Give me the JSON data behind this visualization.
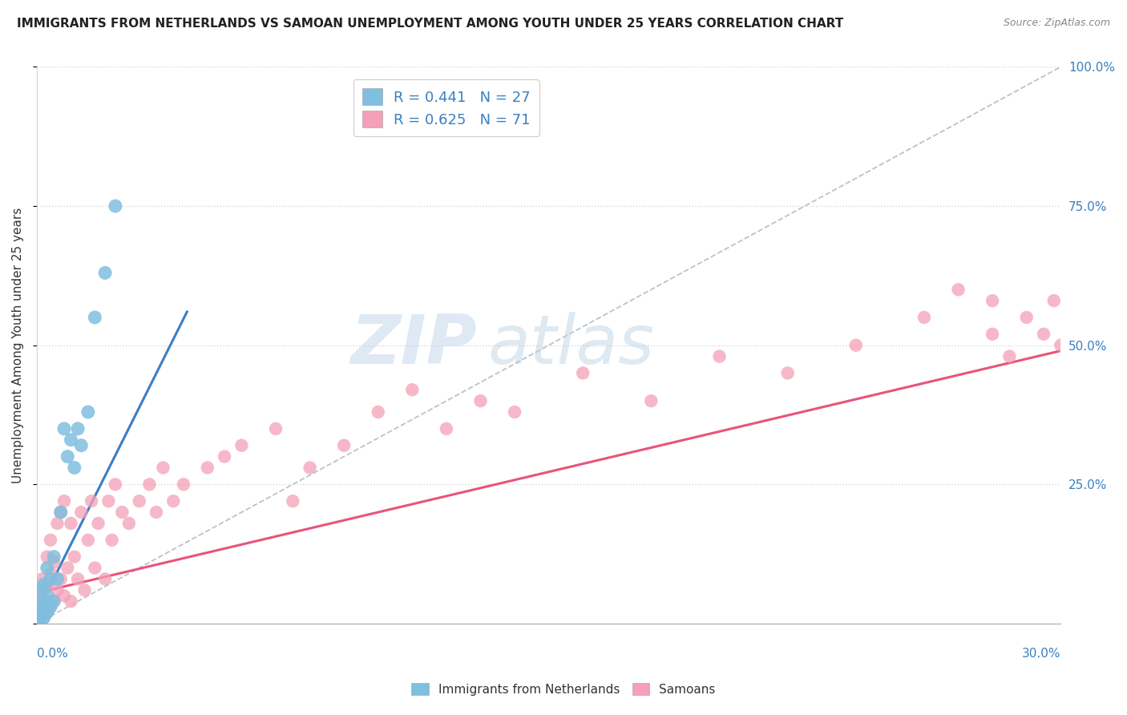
{
  "title": "IMMIGRANTS FROM NETHERLANDS VS SAMOAN UNEMPLOYMENT AMONG YOUTH UNDER 25 YEARS CORRELATION CHART",
  "source": "Source: ZipAtlas.com",
  "ylabel": "Unemployment Among Youth under 25 years",
  "legend1_label": "R = 0.441   N = 27",
  "legend2_label": "R = 0.625   N = 71",
  "blue_color": "#7fbfdf",
  "pink_color": "#f4a0b8",
  "line_blue_color": "#3a7fc1",
  "line_pink_color": "#e8547a",
  "ref_line_color": "#b0b8c0",
  "watermark_zip": "ZIP",
  "watermark_atlas": "atlas",
  "blue_scatter_x": [
    0.0005,
    0.001,
    0.001,
    0.0015,
    0.0015,
    0.002,
    0.002,
    0.002,
    0.003,
    0.003,
    0.003,
    0.004,
    0.004,
    0.005,
    0.005,
    0.006,
    0.007,
    0.008,
    0.009,
    0.01,
    0.011,
    0.012,
    0.013,
    0.015,
    0.017,
    0.02,
    0.023
  ],
  "blue_scatter_y": [
    0.02,
    0.01,
    0.04,
    0.02,
    0.06,
    0.01,
    0.03,
    0.07,
    0.02,
    0.05,
    0.1,
    0.03,
    0.08,
    0.04,
    0.12,
    0.08,
    0.2,
    0.35,
    0.3,
    0.33,
    0.28,
    0.35,
    0.32,
    0.38,
    0.55,
    0.63,
    0.75
  ],
  "pink_scatter_x": [
    0.0005,
    0.001,
    0.001,
    0.0015,
    0.0015,
    0.002,
    0.002,
    0.0025,
    0.003,
    0.003,
    0.003,
    0.004,
    0.004,
    0.004,
    0.005,
    0.005,
    0.006,
    0.006,
    0.007,
    0.007,
    0.008,
    0.008,
    0.009,
    0.01,
    0.01,
    0.011,
    0.012,
    0.013,
    0.014,
    0.015,
    0.016,
    0.017,
    0.018,
    0.02,
    0.021,
    0.022,
    0.023,
    0.025,
    0.027,
    0.03,
    0.033,
    0.035,
    0.037,
    0.04,
    0.043,
    0.05,
    0.055,
    0.06,
    0.07,
    0.075,
    0.08,
    0.09,
    0.1,
    0.11,
    0.12,
    0.13,
    0.14,
    0.16,
    0.18,
    0.2,
    0.22,
    0.24,
    0.26,
    0.27,
    0.28,
    0.28,
    0.285,
    0.29,
    0.295,
    0.298,
    0.3
  ],
  "pink_scatter_y": [
    0.01,
    0.02,
    0.05,
    0.03,
    0.08,
    0.01,
    0.06,
    0.04,
    0.02,
    0.07,
    0.12,
    0.03,
    0.09,
    0.15,
    0.04,
    0.11,
    0.06,
    0.18,
    0.08,
    0.2,
    0.05,
    0.22,
    0.1,
    0.04,
    0.18,
    0.12,
    0.08,
    0.2,
    0.06,
    0.15,
    0.22,
    0.1,
    0.18,
    0.08,
    0.22,
    0.15,
    0.25,
    0.2,
    0.18,
    0.22,
    0.25,
    0.2,
    0.28,
    0.22,
    0.25,
    0.28,
    0.3,
    0.32,
    0.35,
    0.22,
    0.28,
    0.32,
    0.38,
    0.42,
    0.35,
    0.4,
    0.38,
    0.45,
    0.4,
    0.48,
    0.45,
    0.5,
    0.55,
    0.6,
    0.52,
    0.58,
    0.48,
    0.55,
    0.52,
    0.58,
    0.5
  ],
  "blue_line_x0": 0.0,
  "blue_line_y0": 0.02,
  "blue_line_x1": 0.044,
  "blue_line_y1": 0.56,
  "pink_line_x0": 0.0,
  "pink_line_y0": 0.055,
  "pink_line_x1": 0.3,
  "pink_line_y1": 0.49,
  "ref_line_x0": 0.0,
  "ref_line_y0": 0.0,
  "ref_line_x1": 0.3,
  "ref_line_y1": 1.0,
  "xlim": [
    0.0,
    0.3
  ],
  "ylim": [
    0.0,
    1.0
  ],
  "figsize": [
    14.06,
    8.92
  ],
  "dpi": 100
}
